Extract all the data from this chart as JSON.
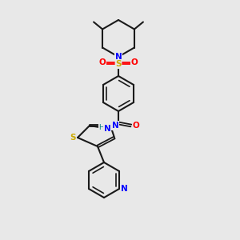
{
  "background_color": "#e8e8e8",
  "atom_colors": {
    "N": "#0000ff",
    "O": "#ff0000",
    "S_sulfonyl": "#ccaa00",
    "S_thiazole": "#ccaa00",
    "C": "#000000",
    "H": "#008080"
  },
  "title": "",
  "figsize": [
    3.0,
    3.0
  ],
  "dpi": 100
}
